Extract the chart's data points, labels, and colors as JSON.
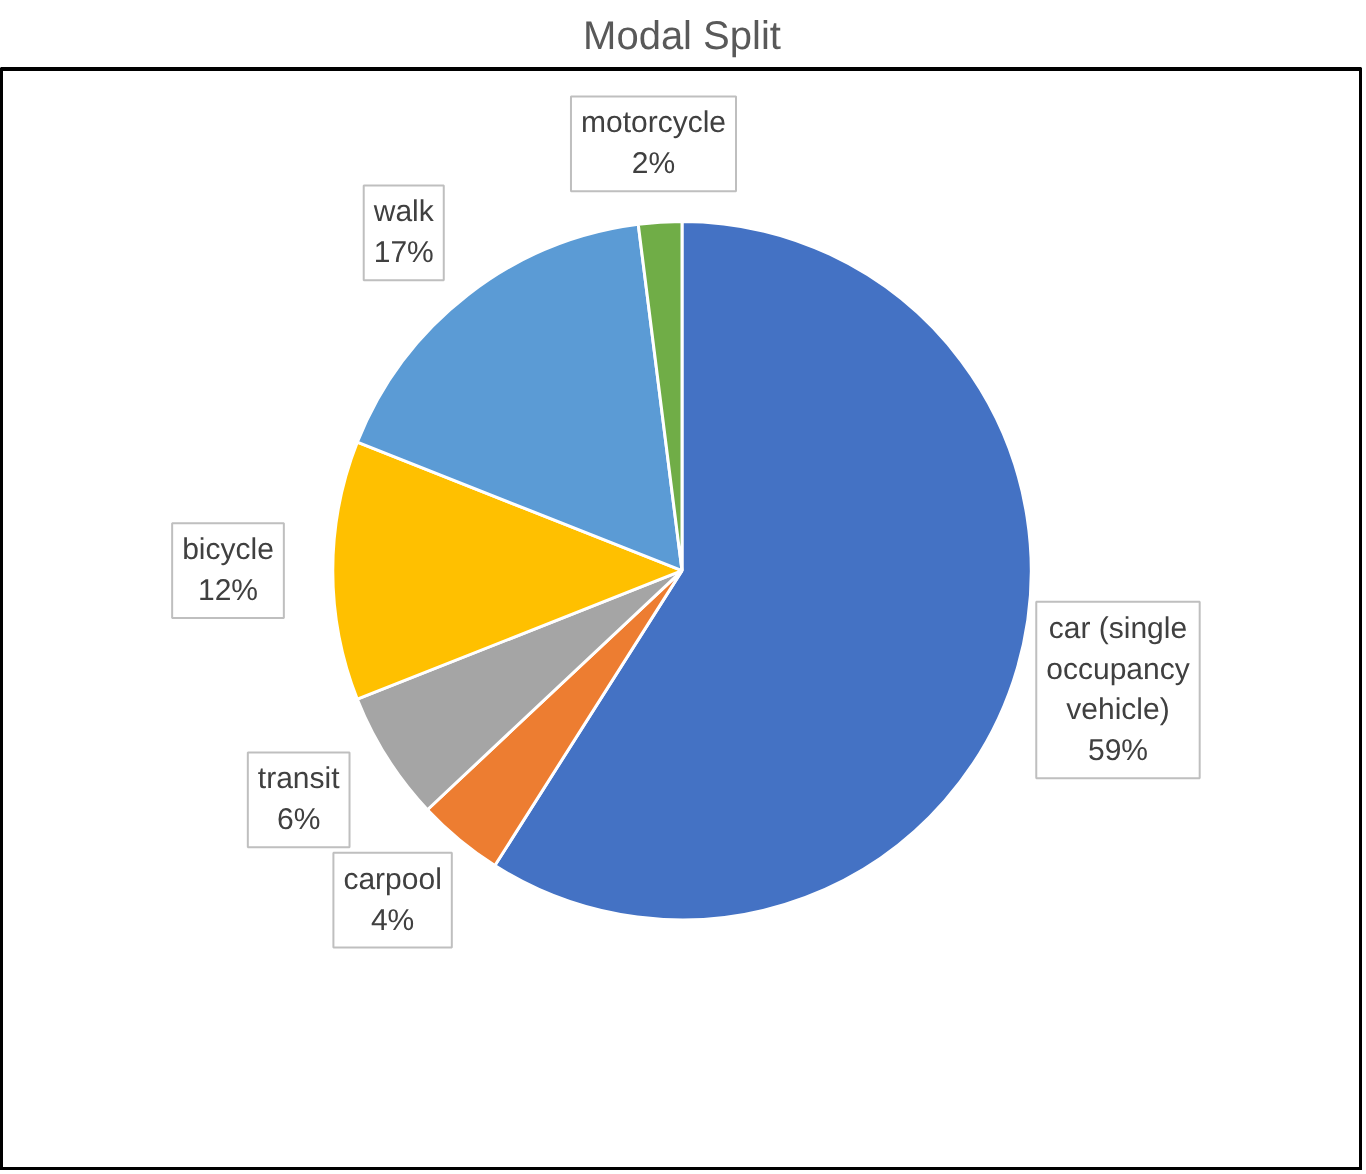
{
  "chart_data": {
    "type": "pie",
    "title": "Modal Split",
    "categories": [
      "car (single occupancy vehicle)",
      "carpool",
      "transit",
      "bicycle",
      "walk",
      "motorcycle"
    ],
    "values": [
      59,
      4,
      6,
      12,
      17,
      2
    ],
    "value_labels": [
      "59%",
      "4%",
      "6%",
      "12%",
      "17%",
      "2%"
    ],
    "colors": [
      "#4472c4",
      "#ed7d31",
      "#a5a5a5",
      "#ffc000",
      "#5b9bd5",
      "#70ad47"
    ],
    "legend": false
  }
}
